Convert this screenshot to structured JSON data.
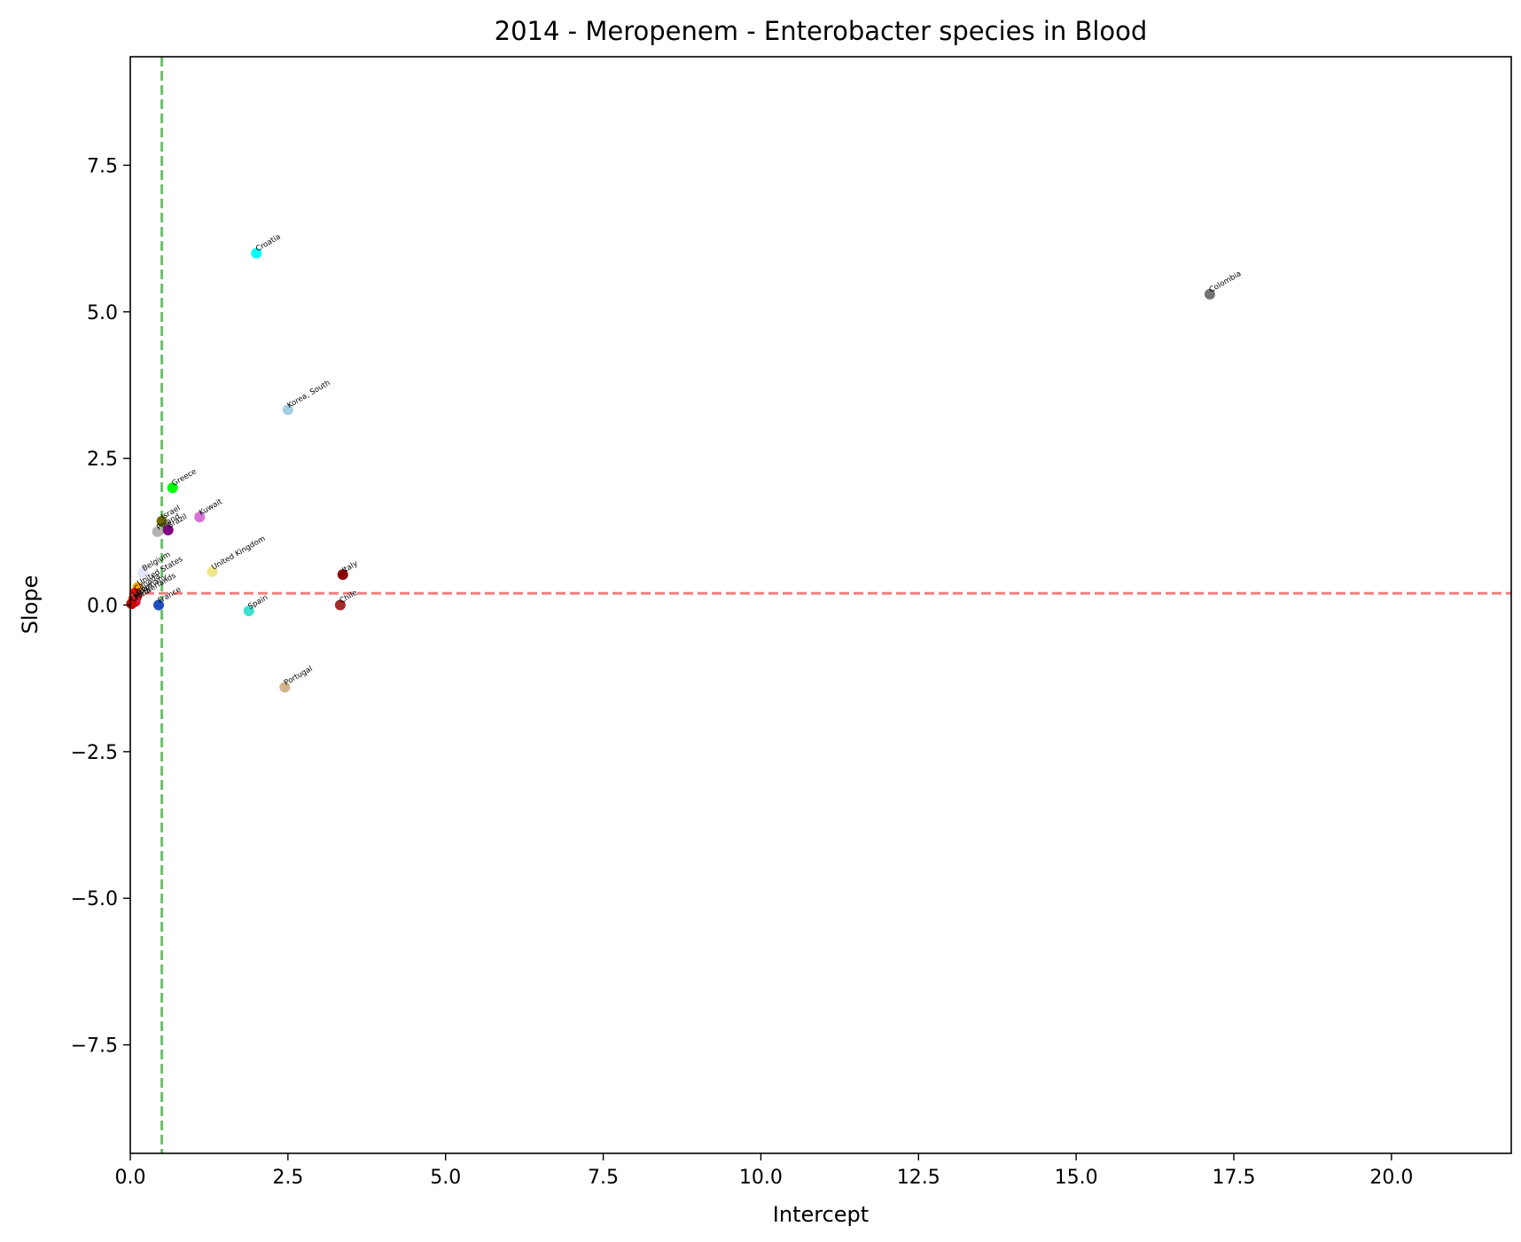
{
  "chart_data": {
    "type": "scatter",
    "title": "2014 - Meropenem - Enterobacter species in Blood",
    "xlabel": "Intercept",
    "ylabel": "Slope",
    "xlim": [
      0,
      21.9
    ],
    "ylim": [
      -9.35,
      9.35
    ],
    "xticks": [
      0.0,
      2.5,
      5.0,
      7.5,
      10.0,
      12.5,
      15.0,
      17.5,
      20.0
    ],
    "xtick_labels": [
      "0.0",
      "2.5",
      "5.0",
      "7.5",
      "10.0",
      "12.5",
      "15.0",
      "17.5",
      "20.0"
    ],
    "yticks": [
      -7.5,
      -5.0,
      -2.5,
      0.0,
      2.5,
      5.0,
      7.5
    ],
    "ytick_labels": [
      "−7.5",
      "−5.0",
      "−2.5",
      "0.0",
      "2.5",
      "5.0",
      "7.5"
    ],
    "grid": false,
    "reference_lines": {
      "horizontal": {
        "y": 0.2,
        "color": "#f08080",
        "style": "dashed"
      },
      "vertical": {
        "x": 0.5,
        "color": "#6dbf6d",
        "style": "dashed"
      }
    },
    "points": [
      {
        "label": "Croatia",
        "x": 2.0,
        "y": 6.0,
        "color": "#00ffff"
      },
      {
        "label": "Colombia",
        "x": 17.12,
        "y": 5.3,
        "color": "#737373"
      },
      {
        "label": "Korea, South",
        "x": 2.5,
        "y": 3.33,
        "color": "#a6cee3"
      },
      {
        "label": "Greece",
        "x": 0.67,
        "y": 2.0,
        "color": "#00ff00"
      },
      {
        "label": "Israel",
        "x": 0.5,
        "y": 1.43,
        "color": "#6b6b00"
      },
      {
        "label": "Poland",
        "x": 0.43,
        "y": 1.25,
        "color": "#b3b3b3"
      },
      {
        "label": "Brazil",
        "x": 0.6,
        "y": 1.28,
        "color": "#800080"
      },
      {
        "label": "Kuwait",
        "x": 1.1,
        "y": 1.5,
        "color": "#da70d6"
      },
      {
        "label": "Belgium",
        "x": 0.2,
        "y": 0.55,
        "color": "#e6e6fa"
      },
      {
        "label": "United Kingdom",
        "x": 1.3,
        "y": 0.57,
        "color": "#f0e68c"
      },
      {
        "label": "United States",
        "x": 0.12,
        "y": 0.3,
        "color": "#ffa500"
      },
      {
        "label": "Canada",
        "x": 0.07,
        "y": 0.2,
        "color": "#ff0000"
      },
      {
        "label": "Germany",
        "x": 0.1,
        "y": 0.14,
        "color": "#e31a1c"
      },
      {
        "label": "Japan",
        "x": 0.05,
        "y": 0.1,
        "color": "#ff4500"
      },
      {
        "label": "Netherlands",
        "x": 0.08,
        "y": 0.06,
        "color": "#dc143c"
      },
      {
        "label": "China",
        "x": 0.02,
        "y": 0.02,
        "color": "#cc0000"
      },
      {
        "label": "France",
        "x": 0.45,
        "y": 0.0,
        "color": "#1f4fbf"
      },
      {
        "label": "Italy",
        "x": 3.37,
        "y": 0.52,
        "color": "#8b0000"
      },
      {
        "label": "Chile",
        "x": 3.33,
        "y": 0.0,
        "color": "#a52a2a"
      },
      {
        "label": "Spain",
        "x": 1.88,
        "y": -0.1,
        "color": "#40e0d0"
      },
      {
        "label": "Portugal",
        "x": 2.45,
        "y": -1.4,
        "color": "#d2b48c"
      }
    ]
  }
}
